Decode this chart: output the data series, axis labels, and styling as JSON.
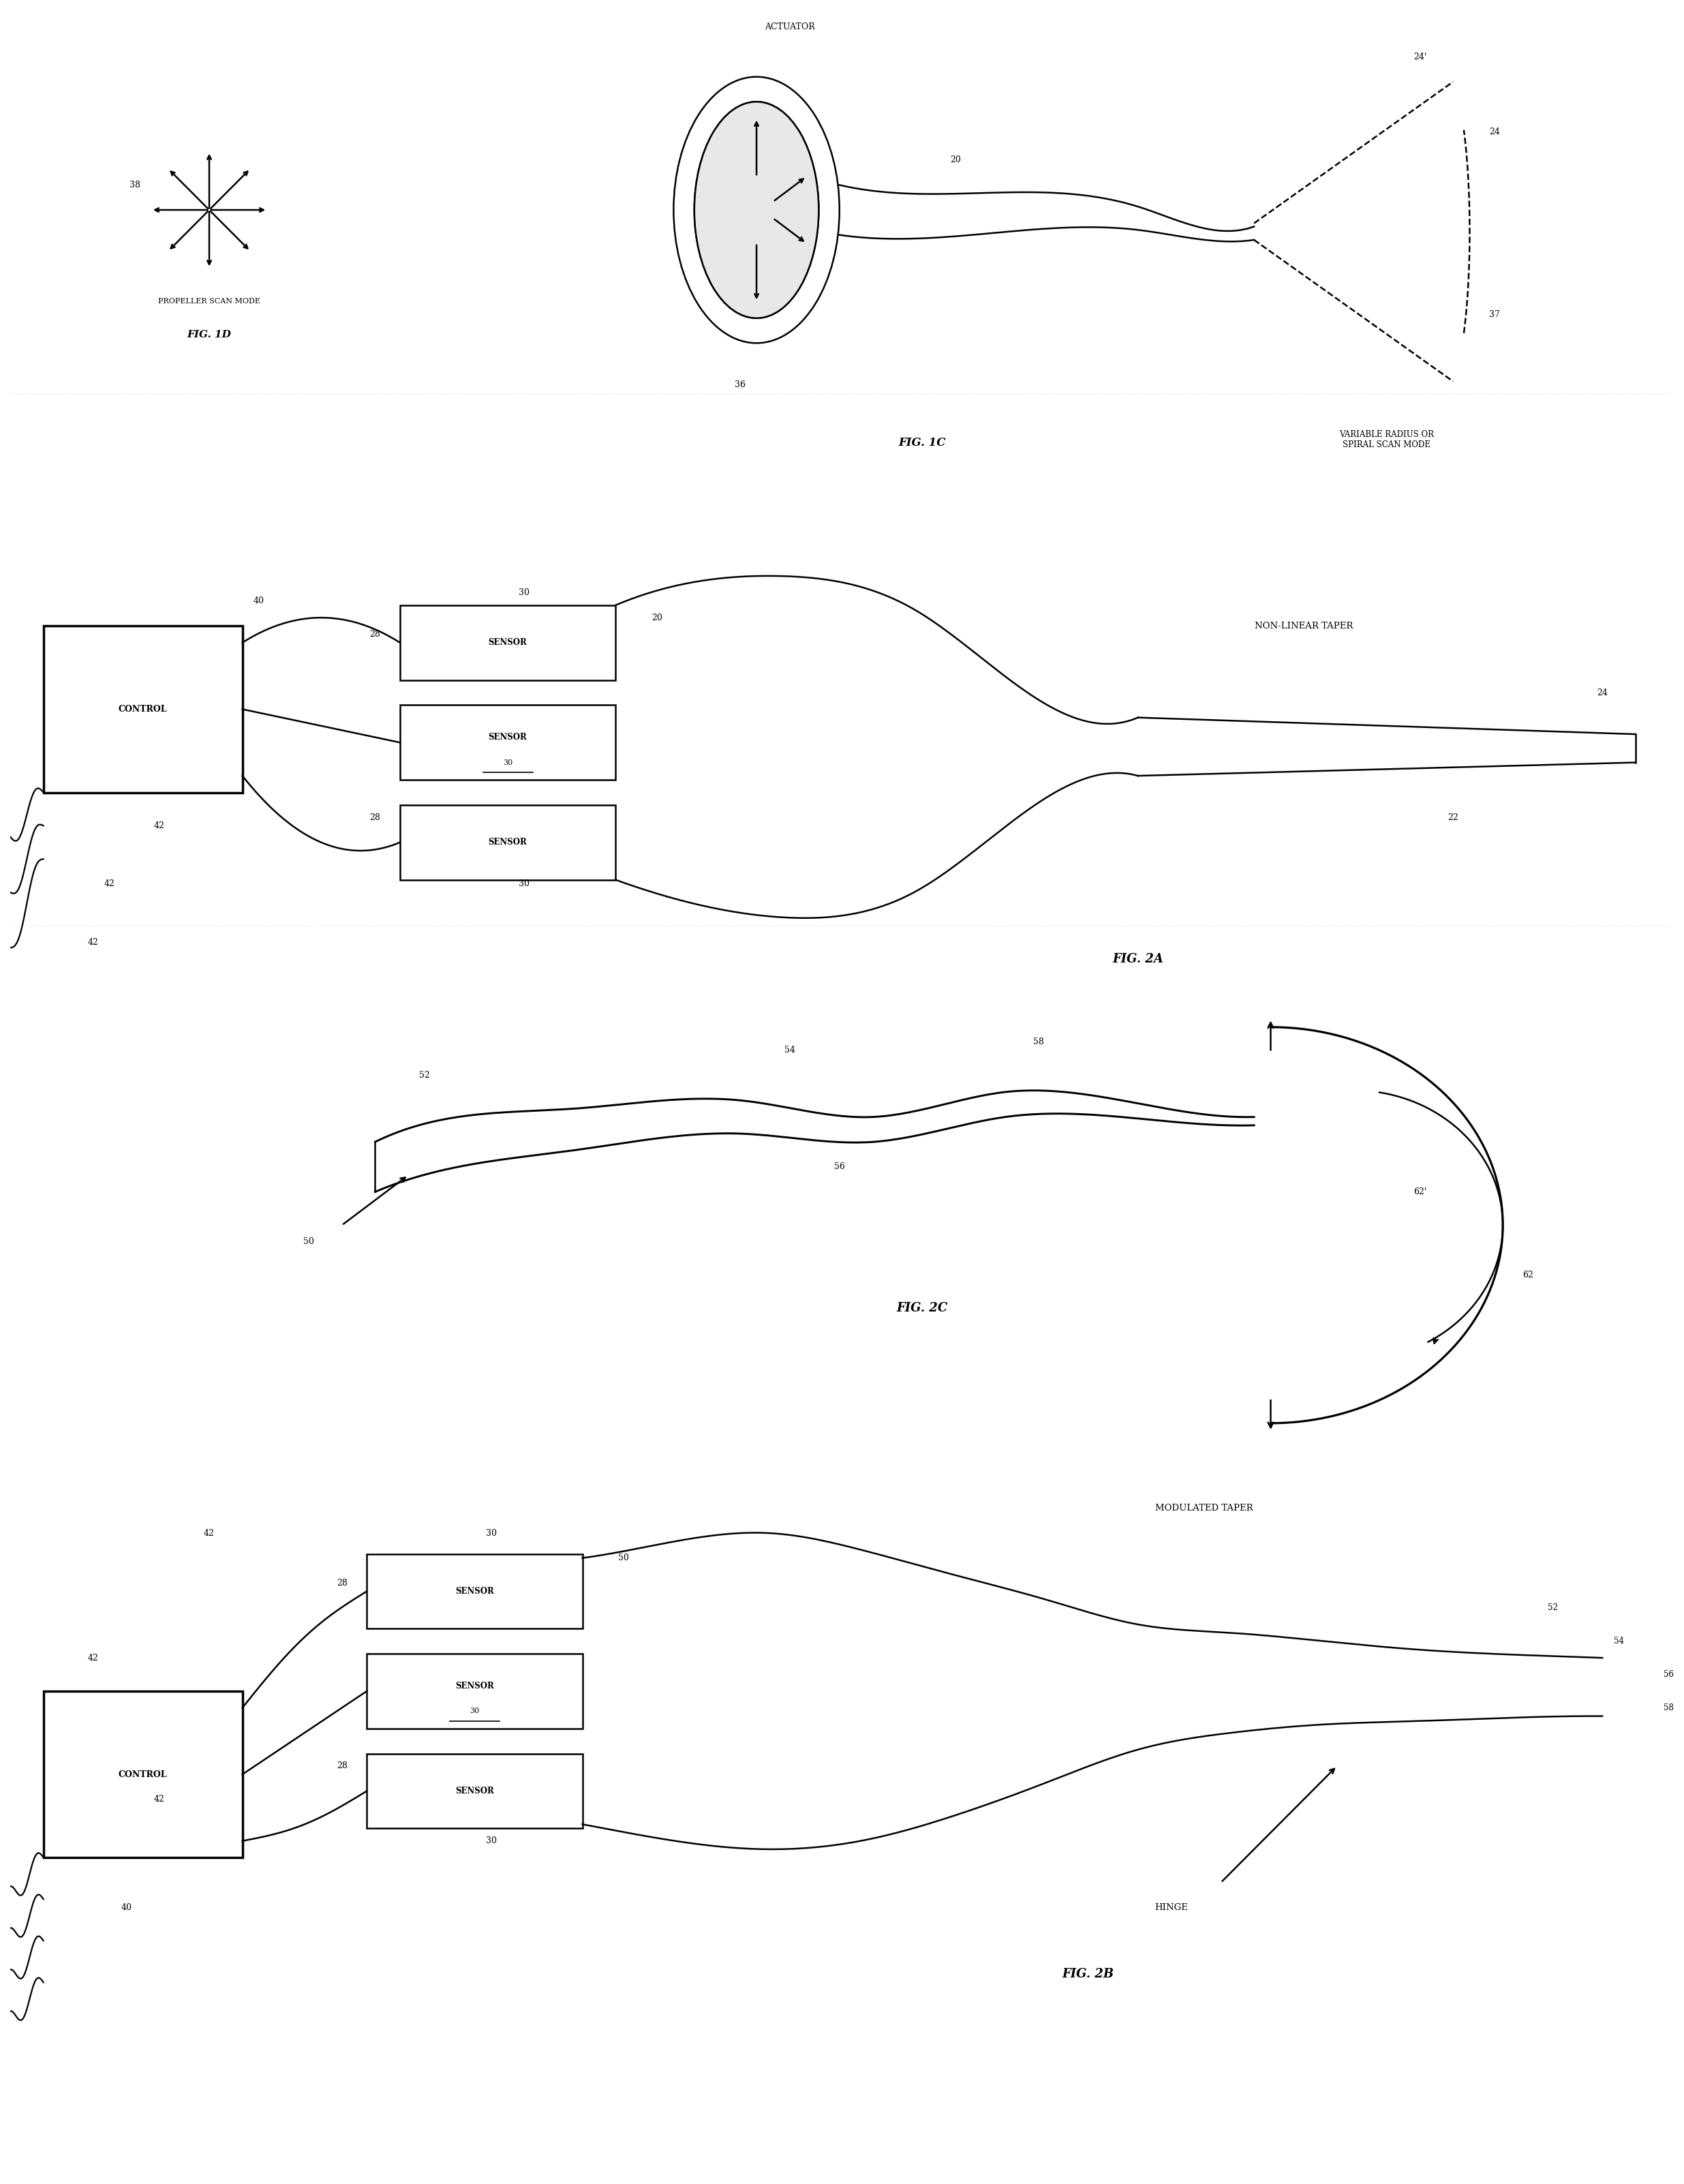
{
  "background_color": "#ffffff",
  "line_color": "#000000",
  "fig_width": 24.71,
  "fig_height": 32.04,
  "fig_labels": {
    "fig1c": "FIG. 1C",
    "fig1d": "FIG. 1D",
    "fig2a": "FIG. 2A",
    "fig2b": "FIG. 2B",
    "fig2c": "FIG. 2C"
  },
  "annotations": {
    "actuator": "ACTUATOR",
    "propeller_scan": "PROPELLER SCAN MODE",
    "variable_radius": "VARIABLE RADIUS OR\nSPIRAL SCAN MODE",
    "non_linear_taper": "NON-LINEAR TAPER",
    "modulated_taper": "MODULATED TAPER",
    "control": "CONTROL",
    "sensor": "SENSOR",
    "hinge": "HINGE"
  },
  "ref_numbers": [
    "20",
    "22",
    "24",
    "24'",
    "28",
    "30",
    "36",
    "37",
    "38",
    "40",
    "42",
    "50",
    "52",
    "54",
    "56",
    "58",
    "62",
    "62'"
  ]
}
